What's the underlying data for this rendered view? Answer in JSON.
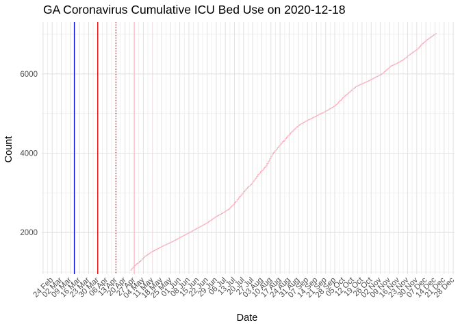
{
  "chart_data": {
    "type": "line",
    "title": "GA Coronavirus Cumulative ICU Bed Use on 2020-12-18",
    "xlabel": "Date",
    "ylabel": "Count",
    "legend": "none",
    "grid": "on",
    "x_axis": {
      "domain": [
        "2020-02-16",
        "2020-12-29"
      ],
      "major_gridline_start": "2020-02-17",
      "major_step_days": 7,
      "minor_offset_days": 3.5,
      "tick_dates": [
        "2020-02-24",
        "2020-03-02",
        "2020-03-09",
        "2020-03-16",
        "2020-03-23",
        "2020-03-30",
        "2020-04-06",
        "2020-04-13",
        "2020-04-20",
        "2020-04-27",
        "2020-05-04",
        "2020-05-11",
        "2020-05-18",
        "2020-05-25",
        "2020-06-01",
        "2020-06-08",
        "2020-06-15",
        "2020-06-22",
        "2020-06-29",
        "2020-07-06",
        "2020-07-13",
        "2020-07-20",
        "2020-07-27",
        "2020-08-03",
        "2020-08-10",
        "2020-08-17",
        "2020-08-24",
        "2020-08-31",
        "2020-09-07",
        "2020-09-14",
        "2020-09-21",
        "2020-09-28",
        "2020-10-05",
        "2020-10-12",
        "2020-10-19",
        "2020-10-26",
        "2020-11-02",
        "2020-11-09",
        "2020-11-16",
        "2020-11-23",
        "2020-11-30",
        "2020-12-07",
        "2020-12-14",
        "2020-12-21",
        "2020-12-28"
      ],
      "tick_labels": [
        "24 Feb",
        "02 Mar",
        "09 Mar",
        "16 Mar",
        "23 Mar",
        "30 Mar",
        "06 Apr",
        "13 Apr",
        "20 Apr",
        "27 Apr",
        "04 May",
        "11 May",
        "18 May",
        "25 May",
        "01 Jun",
        "08 Jun",
        "15 Jun",
        "22 Jun",
        "29 Jun",
        "06 Jul",
        "13 Jul",
        "20 Jul",
        "27 Jul",
        "03 Aug",
        "10 Aug",
        "17 Aug",
        "24 Aug",
        "31 Aug",
        "07 Sep",
        "14 Sep",
        "21 Sep",
        "28 Sep",
        "05 Oct",
        "12 Oct",
        "19 Oct",
        "26 Oct",
        "02 Nov",
        "09 Nov",
        "16 Nov",
        "23 Nov",
        "30 Nov",
        "07 Dec",
        "14 Dec",
        "21 Dec",
        "28 Dec"
      ]
    },
    "y_axis": {
      "domain": [
        950,
        7310
      ],
      "tick_values": [
        2000,
        4000,
        6000
      ],
      "tick_labels": [
        "2000",
        "4000",
        "6000"
      ],
      "minor_values": [
        1000,
        3000,
        5000,
        7000
      ]
    },
    "series": [
      {
        "name": "cumulative-icu-beds",
        "color": "#f7b1bf",
        "style": "step-daily",
        "points": [
          [
            "2020-04-24",
            1050
          ],
          [
            "2020-04-26",
            1130
          ],
          [
            "2020-04-28",
            1190
          ],
          [
            "2020-05-01",
            1270
          ],
          [
            "2020-05-05",
            1400
          ],
          [
            "2020-05-10",
            1510
          ],
          [
            "2020-05-15",
            1600
          ],
          [
            "2020-05-20",
            1680
          ],
          [
            "2020-05-26",
            1770
          ],
          [
            "2020-06-01",
            1880
          ],
          [
            "2020-06-07",
            1980
          ],
          [
            "2020-06-12",
            2070
          ],
          [
            "2020-06-17",
            2160
          ],
          [
            "2020-06-22",
            2250
          ],
          [
            "2020-06-28",
            2390
          ],
          [
            "2020-07-03",
            2480
          ],
          [
            "2020-07-08",
            2580
          ],
          [
            "2020-07-12",
            2710
          ],
          [
            "2020-07-17",
            2910
          ],
          [
            "2020-07-22",
            3110
          ],
          [
            "2020-07-26",
            3230
          ],
          [
            "2020-07-31",
            3460
          ],
          [
            "2020-08-06",
            3680
          ],
          [
            "2020-08-11",
            3980
          ],
          [
            "2020-08-16",
            4180
          ],
          [
            "2020-08-20",
            4330
          ],
          [
            "2020-08-26",
            4550
          ],
          [
            "2020-08-31",
            4700
          ],
          [
            "2020-09-05",
            4800
          ],
          [
            "2020-09-10",
            4880
          ],
          [
            "2020-09-16",
            4980
          ],
          [
            "2020-09-22",
            5080
          ],
          [
            "2020-09-28",
            5200
          ],
          [
            "2020-10-05",
            5430
          ],
          [
            "2020-10-14",
            5680
          ],
          [
            "2020-10-24",
            5830
          ],
          [
            "2020-11-03",
            6000
          ],
          [
            "2020-11-10",
            6200
          ],
          [
            "2020-11-14",
            6260
          ],
          [
            "2020-11-19",
            6350
          ],
          [
            "2020-11-24",
            6480
          ],
          [
            "2020-11-30",
            6620
          ],
          [
            "2020-12-04",
            6760
          ],
          [
            "2020-12-08",
            6870
          ],
          [
            "2020-12-11",
            6940
          ],
          [
            "2020-12-15",
            7030
          ]
        ]
      }
    ],
    "annotations": [
      {
        "name": "event-line-blue",
        "date": "2020-03-12",
        "color": "#0000dd",
        "style": "solid"
      },
      {
        "name": "event-line-red",
        "date": "2020-03-30",
        "color": "#e60000",
        "style": "solid"
      },
      {
        "name": "event-line-red-dotted",
        "date": "2020-04-13",
        "color": "#e60000",
        "style": "dotted"
      },
      {
        "name": "event-line-pink",
        "date": "2020-04-27",
        "color": "#ffbcc9",
        "style": "solid"
      },
      {
        "name": "event-line-pink-dotted",
        "date": "2020-05-11",
        "color": "#ffd9de",
        "style": "dotted"
      }
    ],
    "colors": {
      "background": "#ffffff",
      "major_grid": "#e3e3e3",
      "minor_grid": "#eeeeee",
      "tick_label": "#4d4d4d",
      "title_text": "#000000",
      "series_line": "#f7b1bf"
    }
  }
}
